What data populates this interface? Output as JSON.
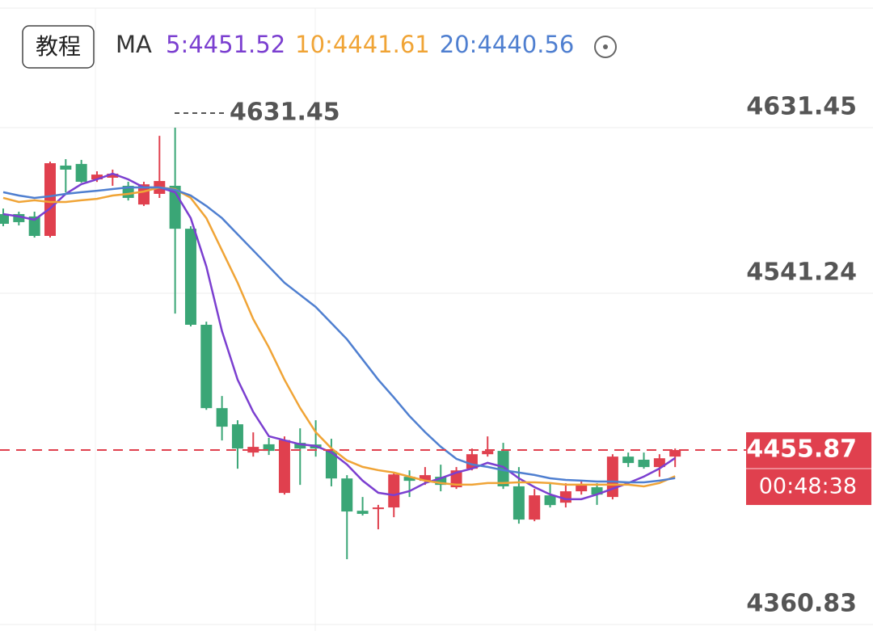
{
  "chart_data": {
    "type": "candlestick",
    "button": "教程",
    "indicator": "MA",
    "ylim": [
      4360.83,
      4696.59
    ],
    "yticks": [
      4631.45,
      4541.24,
      4360.83
    ],
    "up_color": "#e0404e",
    "down_color": "#3aa676",
    "candles": {
      "open": [
        4584.4,
        4584.4,
        4583.1,
        4572.5,
        4610.8,
        4611.7,
        4603.3,
        4604.2,
        4599.8,
        4589.6,
        4595.4,
        4599.8,
        4576.4,
        4524.1,
        4478.7,
        4469.9,
        4454.5,
        4459.0,
        4432.5,
        4459.8,
        4458.9,
        4455.4,
        4440.4,
        4422.8,
        4423.7,
        4424.6,
        4441.3,
        4439.1,
        4441.3,
        4435.6,
        4445.7,
        4453.6,
        4455.4,
        4436.1,
        4418.0,
        4431.2,
        4427.2,
        4433.4,
        4435.6,
        4430.3,
        4452.3,
        4450.6,
        4446.6,
        4452.3
      ],
      "high": [
        4587.4,
        4585.7,
        4585.7,
        4613.0,
        4614.3,
        4613.9,
        4607.7,
        4608.6,
        4602.0,
        4602.0,
        4627.0,
        4631.45,
        4577.8,
        4525.8,
        4485.3,
        4472.1,
        4465.5,
        4462.5,
        4463.3,
        4467.7,
        4472.1,
        4462.0,
        4442.2,
        4430.3,
        4426.0,
        4443.5,
        4444.8,
        4446.6,
        4447.9,
        4446.6,
        4456.7,
        4463.3,
        4459.8,
        4446.6,
        4434.7,
        4437.8,
        4437.8,
        4439.1,
        4437.8,
        4453.6,
        4454.5,
        4454.5,
        4453.6,
        4456.7
      ],
      "low": [
        4577.8,
        4578.2,
        4571.6,
        4571.6,
        4596.2,
        4601.5,
        4601.9,
        4599.8,
        4591.8,
        4588.8,
        4593.2,
        4530.2,
        4523.2,
        4477.8,
        4461.1,
        4445.7,
        4452.3,
        4453.2,
        4431.6,
        4436.9,
        4452.3,
        4436.1,
        4396.4,
        4420.2,
        4412.7,
        4419.3,
        4430.3,
        4436.9,
        4433.4,
        4434.7,
        4444.8,
        4452.3,
        4434.7,
        4415.8,
        4417.1,
        4424.6,
        4424.6,
        4431.6,
        4426.0,
        4429.0,
        4446.6,
        4445.7,
        4441.3,
        4446.6
      ],
      "close": [
        4579.1,
        4580.0,
        4572.5,
        4612.1,
        4608.6,
        4602.0,
        4605.9,
        4606.4,
        4593.2,
        4600.6,
        4602.4,
        4576.4,
        4524.1,
        4478.7,
        4468.6,
        4456.7,
        4457.6,
        4455.4,
        4461.3,
        4456.7,
        4456.7,
        4440.4,
        4422.4,
        4421.1,
        4424.6,
        4442.6,
        4439.1,
        4442.2,
        4436.9,
        4444.8,
        4453.6,
        4455.4,
        4436.1,
        4418.0,
        4431.2,
        4425.9,
        4433.4,
        4436.9,
        4431.6,
        4452.3,
        4448.8,
        4446.6,
        4451.4,
        4455.87
      ]
    },
    "series": [
      {
        "name": "5:4451.52",
        "color": "#7b3fd0",
        "values": [
          4584.4,
          4583.1,
          4581.3,
          4587.5,
          4595.4,
          4600.7,
          4603.3,
          4606.4,
          4603.3,
          4598.9,
          4598.9,
          4596.3,
          4582.2,
          4555.8,
          4520.6,
          4494.2,
          4476.6,
          4463.4,
          4461.2,
          4459.0,
          4458.1,
          4454.6,
          4448.0,
          4439.2,
          4432.6,
          4431.3,
          4433.5,
          4437.9,
          4440.5,
          4443.6,
          4445.8,
          4448.9,
          4446.7,
          4440.5,
          4435.7,
          4431.7,
          4429.1,
          4429.1,
          4431.7,
          4434.8,
          4437.9,
          4441.4,
          4445.8,
          4451.52
        ]
      },
      {
        "name": "10:4441.61",
        "color": "#f0a436",
        "values": [
          4593.2,
          4591.0,
          4591.9,
          4591.0,
          4591.0,
          4591.9,
          4592.7,
          4594.5,
          4595.4,
          4596.7,
          4598.9,
          4598.0,
          4593.2,
          4582.2,
          4564.6,
          4547.0,
          4527.2,
          4511.8,
          4494.2,
          4478.8,
          4465.6,
          4456.8,
          4450.2,
          4446.7,
          4444.9,
          4443.6,
          4441.4,
          4439.2,
          4437.9,
          4437.0,
          4437.0,
          4437.9,
          4437.9,
          4438.3,
          4438.3,
          4437.9,
          4437.0,
          4437.0,
          4437.0,
          4437.0,
          4437.0,
          4436.1,
          4437.9,
          4441.61
        ]
      },
      {
        "name": "20:4440.56",
        "color": "#4f7fd0",
        "values": [
          4596.3,
          4594.5,
          4593.2,
          4594.1,
          4595.4,
          4596.3,
          4597.1,
          4598.0,
          4598.9,
          4598.9,
          4598.9,
          4597.6,
          4594.5,
          4588.8,
          4582.2,
          4573.4,
          4564.6,
          4555.8,
          4547.0,
          4540.4,
          4533.8,
          4525.0,
          4516.2,
          4505.2,
          4494.2,
          4484.5,
          4474.4,
          4465.6,
          4457.7,
          4451.1,
          4448.0,
          4446.7,
          4444.9,
          4443.6,
          4442.3,
          4440.5,
          4439.6,
          4439.2,
          4438.7,
          4438.7,
          4438.3,
          4438.3,
          4439.2,
          4440.56
        ]
      }
    ],
    "max_annotation": 4631.45,
    "last_price": 4455.87,
    "countdown": "00:48:38"
  }
}
